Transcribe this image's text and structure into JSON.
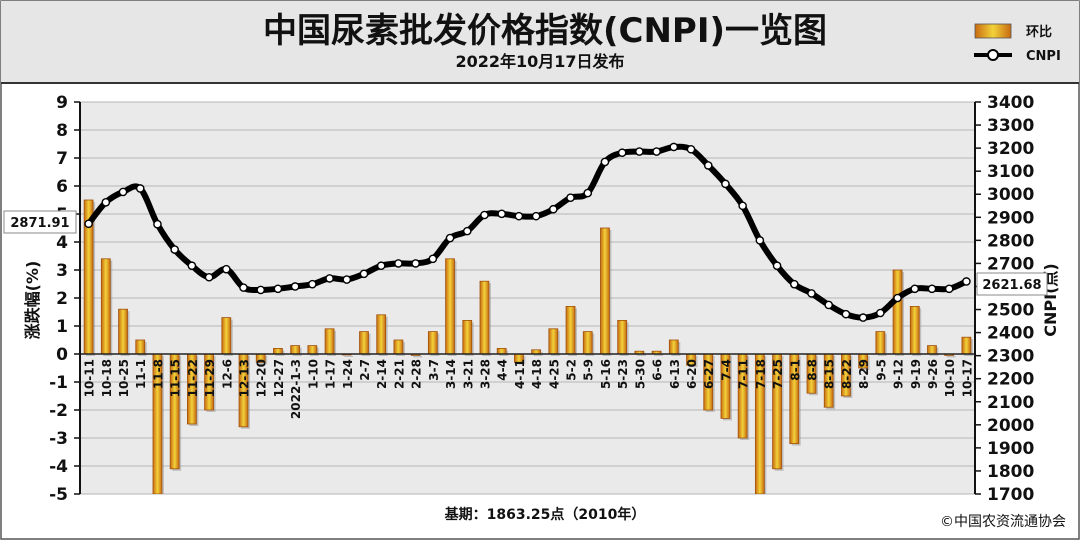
{
  "chart_data": {
    "type": "bar+line",
    "title": "中国尿素批发价格指数(CNPI)一览图",
    "subtitle": "2022年10月17日发布",
    "legend": [
      {
        "name": "环比",
        "kind": "bar"
      },
      {
        "name": "CNPI",
        "kind": "line"
      }
    ],
    "legend_position": "top-right",
    "ylabel_left": "涨跌幅(%)",
    "ylabel_right": "CNPI(点)",
    "ylim_left": [
      -5,
      9
    ],
    "ylim_right": [
      1700,
      3400
    ],
    "yticks_left": [
      "9",
      "8",
      "7",
      "6",
      "5",
      "4",
      "3",
      "2",
      "1",
      "0",
      "-1",
      "-2",
      "-3",
      "-4",
      "-5"
    ],
    "yticks_right": [
      "3400",
      "3300",
      "3200",
      "3100",
      "3000",
      "2900",
      "2800",
      "2700",
      "2600",
      "2500",
      "2400",
      "2300",
      "2200",
      "2100",
      "2000",
      "1900",
      "1800",
      "1700"
    ],
    "grid": "horizontal",
    "categories": [
      "10-11",
      "10-18",
      "10-25",
      "11-1",
      "11-8",
      "11-15",
      "11-22",
      "11-29",
      "12-6",
      "12-13",
      "12-20",
      "12-27",
      "2022-1-3",
      "1-10",
      "1-17",
      "1-24",
      "2-7",
      "2-14",
      "2-21",
      "2-28",
      "3-7",
      "3-14",
      "3-21",
      "3-28",
      "4-4",
      "4-11",
      "4-18",
      "4-25",
      "5-2",
      "5-9",
      "5-16",
      "5-23",
      "5-30",
      "6-6",
      "6-13",
      "6-20",
      "6-27",
      "7-4",
      "7-11",
      "7-18",
      "7-25",
      "8-1",
      "8-8",
      "8-15",
      "8-22",
      "8-29",
      "9-5",
      "9-12",
      "9-19",
      "9-26",
      "10-10",
      "10-17"
    ],
    "series": [
      {
        "name": "环比",
        "type": "bar",
        "axis": "left",
        "color": "#e8a415",
        "values": [
          5.5,
          3.4,
          1.6,
          0.5,
          -5.0,
          -4.1,
          -2.5,
          -2.0,
          1.3,
          -2.6,
          -0.3,
          0.2,
          0.3,
          0.3,
          0.9,
          0.0,
          0.8,
          1.4,
          0.5,
          -0.05,
          0.8,
          3.4,
          1.2,
          2.6,
          0.2,
          -0.3,
          0.15,
          0.9,
          1.7,
          0.8,
          4.5,
          1.2,
          0.1,
          0.1,
          0.5,
          -0.4,
          -2.0,
          -2.3,
          -3.0,
          -5.0,
          -4.1,
          -3.2,
          -1.4,
          -1.9,
          -1.5,
          -0.5,
          0.8,
          3.0,
          1.7,
          0.3,
          -0.05,
          0.6
        ]
      },
      {
        "name": "CNPI",
        "type": "line",
        "axis": "right",
        "color": "#000000",
        "values": [
          2871.91,
          2965,
          3010,
          3025,
          2870,
          2760,
          2690,
          2640,
          2675,
          2595,
          2585,
          2590,
          2600,
          2610,
          2635,
          2630,
          2655,
          2690,
          2700,
          2700,
          2720,
          2810,
          2840,
          2910,
          2915,
          2905,
          2905,
          2935,
          2985,
          3005,
          3140,
          3180,
          3185,
          3185,
          3205,
          3195,
          3125,
          3045,
          2950,
          2800,
          2690,
          2610,
          2570,
          2520,
          2480,
          2465,
          2485,
          2550,
          2590,
          2590,
          2590,
          2621.68
        ]
      }
    ],
    "data_labels": {
      "first": "2871.91",
      "last": "2621.68"
    }
  },
  "footer": {
    "base": "基期：1863.25点（2010年）",
    "copyright": "©中国农资流通协会"
  }
}
